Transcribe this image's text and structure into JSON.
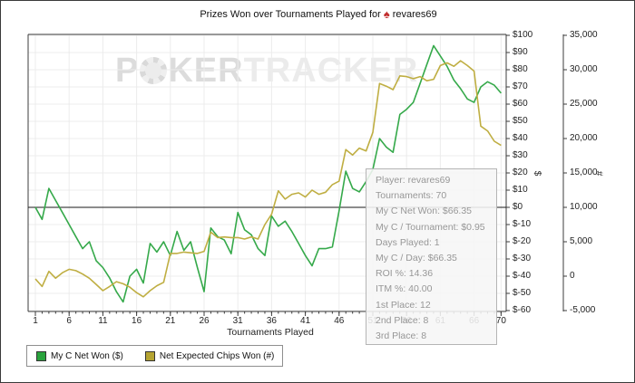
{
  "title": {
    "prefix": "Prizes Won over Tournaments Played for",
    "player": "revares69",
    "icon": "spade-logo"
  },
  "watermark": {
    "p": "P",
    "ker": "KER",
    "tracker": "TRACKER",
    "o_icon": "poker-chip-icon"
  },
  "chart_data": {
    "type": "line",
    "xlabel": "Tournaments Played",
    "x_range": [
      1,
      70
    ],
    "x_ticks": [
      "1",
      "6",
      "11",
      "16",
      "21",
      "26",
      "31",
      "36",
      "41",
      "46",
      "51",
      "56",
      "61",
      "66",
      "70"
    ],
    "x_tick_values": [
      1,
      6,
      11,
      16,
      21,
      26,
      31,
      36,
      41,
      46,
      51,
      56,
      61,
      66,
      70
    ],
    "grid": true,
    "zero_line": true,
    "legend_position": "bottom-left",
    "dollar_axis": {
      "label": "$",
      "min": -60,
      "max": 100,
      "tick_step": 10,
      "tick_labels": [
        "$100",
        "$90",
        "$80",
        "$70",
        "$60",
        "$50",
        "$40",
        "$30",
        "$20",
        "$10",
        "$0",
        "$-10",
        "$-20",
        "$-30",
        "$-40",
        "$-50",
        "$-60"
      ]
    },
    "chips_axis": {
      "label": "#",
      "min": -5000,
      "max": 35000,
      "tick_step": 5000,
      "tick_labels": [
        "35,000",
        "30,000",
        "25,000",
        "20,000",
        "15,000",
        "10,000",
        "5,000",
        "0",
        "-5,000"
      ]
    },
    "series": [
      {
        "name": "My C Net Won ($)",
        "axis": "dollar",
        "color": "#35a94a",
        "values": [
          0,
          -7,
          11,
          4,
          -3,
          -10,
          -17,
          -24,
          -20,
          -31,
          -35,
          -41,
          -49,
          -55,
          -40,
          -36,
          -44,
          -21,
          -26,
          -20,
          -28,
          -14,
          -25,
          -20,
          -35,
          -49,
          -12,
          -17,
          -19,
          -27,
          -3,
          -13,
          -16,
          -24,
          -28,
          -5,
          -11,
          -8,
          -14,
          -21,
          -28,
          -34,
          -24,
          -24,
          -23,
          -2,
          21,
          11,
          9,
          15,
          22,
          40,
          35,
          32,
          54,
          57,
          61,
          72,
          83,
          94,
          88,
          82,
          74,
          69,
          63,
          61,
          70,
          73,
          71,
          66.35
        ]
      },
      {
        "name": "Net Expected Chips Won (#)",
        "axis": "chips",
        "color": "#bfae42",
        "values": [
          -400,
          -1500,
          700,
          -300,
          500,
          1000,
          800,
          300,
          -300,
          -1200,
          -2100,
          -1500,
          -800,
          -1100,
          -1600,
          -2400,
          -3000,
          -2100,
          -1400,
          -900,
          3300,
          3300,
          3500,
          3400,
          3300,
          3600,
          6400,
          5600,
          5700,
          5600,
          5600,
          5400,
          5700,
          5400,
          7500,
          9000,
          12400,
          11200,
          11900,
          12100,
          11500,
          12500,
          11900,
          12200,
          13300,
          13800,
          18400,
          17600,
          18600,
          18200,
          20900,
          28000,
          27600,
          27100,
          29100,
          29000,
          28700,
          29000,
          28400,
          28600,
          30600,
          31000,
          30500,
          31300,
          30600,
          29800,
          21800,
          21100,
          19600,
          19000
        ]
      }
    ]
  },
  "legend": {
    "items": [
      {
        "label": "My C Net Won ($)",
        "color": "#2aa33d"
      },
      {
        "label": "Net Expected Chips Won (#)",
        "color": "#b5a432"
      }
    ]
  },
  "tooltip": {
    "lines": [
      "Player: revares69",
      "Tournaments: 70",
      "My C Net Won: $66.35",
      "My C / Tournament: $0.95",
      "Days Played: 1",
      "My C / Day: $66.35",
      "ROI %: 14.36",
      "ITM %: 40.00",
      "1st Place: 12",
      "2nd Place: 8",
      "3rd Place: 8"
    ]
  },
  "colors": {
    "grid": "#ececec",
    "axis": "#3c3c3c",
    "zero_line": "#1a1a1a",
    "watermark_dark": "#dcdcdc",
    "watermark_light": "#ebebeb",
    "tooltip_text": "#979797",
    "spade": "#c22f2f"
  }
}
